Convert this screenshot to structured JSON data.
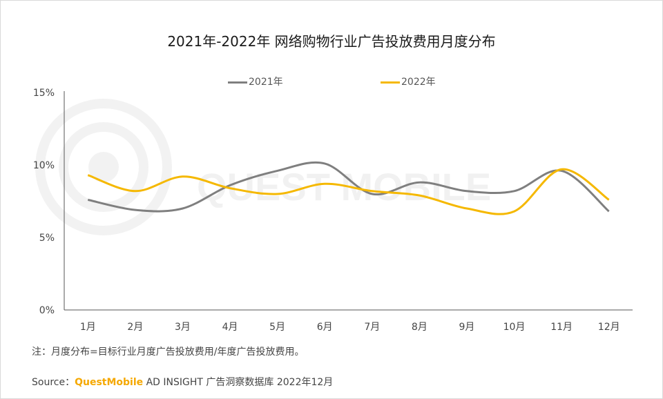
{
  "chart_data": {
    "type": "line",
    "title": "2021年-2022年 网络购物行业广告投放费用月度分布",
    "categories": [
      "1月",
      "2月",
      "3月",
      "4月",
      "5月",
      "6月",
      "7月",
      "8月",
      "9月",
      "10月",
      "11月",
      "12月"
    ],
    "series": [
      {
        "name": "2021年",
        "color": "#7f7f7f",
        "values": [
          7.6,
          6.9,
          7.0,
          8.6,
          9.6,
          10.1,
          8.0,
          8.8,
          8.2,
          8.2,
          9.6,
          6.8
        ]
      },
      {
        "name": "2022年",
        "color": "#f5b800",
        "values": [
          9.3,
          8.2,
          9.2,
          8.4,
          8.0,
          8.7,
          8.2,
          7.9,
          7.0,
          6.8,
          9.7,
          7.6
        ]
      }
    ],
    "yticks": [
      "0%",
      "5%",
      "10%",
      "15%"
    ],
    "ylim": [
      0,
      15
    ],
    "legend_position": "top-center",
    "grid": false
  },
  "watermark": "QUEST MOBILE",
  "note": "注：月度分布=目标行业月度广告投放费用/年度广告投放费用。",
  "source": {
    "prefix": "Source：",
    "brand": "QuestMobile",
    "text": " AD INSIGHT 广告洞察数据库 2022年12月"
  }
}
